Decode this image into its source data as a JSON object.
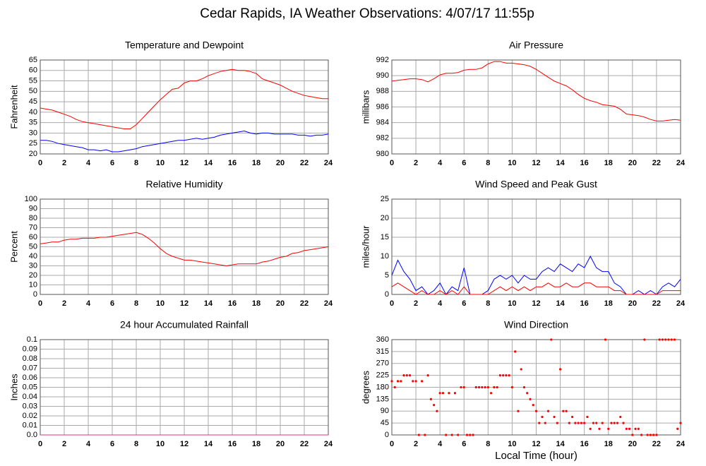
{
  "title": "Cedar Rapids, IA Weather Observations: 4/07/17 11:55p",
  "chart_data": [
    {
      "type": "line",
      "title": "Temperature and Dewpoint",
      "ylabel": "Fahrenheit",
      "x": [
        0,
        0.5,
        1,
        1.5,
        2,
        2.5,
        3,
        3.5,
        4,
        4.5,
        5,
        5.5,
        6,
        6.5,
        7,
        7.5,
        8,
        8.5,
        9,
        9.5,
        10,
        10.5,
        11,
        11.5,
        12,
        12.5,
        13,
        13.5,
        14,
        14.5,
        15,
        15.5,
        16,
        16.5,
        17,
        17.5,
        18,
        18.5,
        19,
        19.5,
        20,
        20.5,
        21,
        21.5,
        22,
        22.5,
        23,
        23.5,
        24
      ],
      "series": [
        {
          "color": "#ff0000",
          "values": [
            42,
            41.5,
            41,
            40,
            39,
            38,
            36.5,
            35.5,
            35,
            34.5,
            34,
            33.5,
            33,
            32.5,
            32,
            32,
            34,
            37,
            40,
            43,
            46,
            48.5,
            51,
            51.5,
            54,
            55,
            55,
            56,
            57.5,
            58.5,
            59.5,
            60,
            60.5,
            60,
            60,
            59.5,
            58.5,
            56,
            55,
            54,
            53,
            51.5,
            50,
            49,
            48,
            47.5,
            47,
            46.5,
            46.5
          ]
        },
        {
          "color": "#0000ff",
          "values": [
            26.5,
            26.5,
            26,
            25,
            24.5,
            24,
            23.5,
            23,
            22,
            22,
            21.5,
            22,
            21,
            21,
            21.5,
            22,
            22.5,
            23.5,
            24,
            24.5,
            25,
            25.5,
            26,
            26.5,
            26.5,
            27,
            27.5,
            27,
            27.5,
            28,
            29,
            29.5,
            30,
            30.5,
            31,
            30,
            29.5,
            30,
            30,
            29.5,
            29.5,
            29.5,
            29.5,
            29,
            29,
            28.5,
            29,
            29,
            29.5
          ]
        }
      ],
      "xlim": [
        0,
        24
      ],
      "xticks": [
        0,
        2,
        4,
        6,
        8,
        10,
        12,
        14,
        16,
        18,
        20,
        22,
        24
      ],
      "ylim": [
        20,
        65
      ],
      "yticks": [
        20,
        25,
        30,
        35,
        40,
        45,
        50,
        55,
        60,
        65
      ],
      "grid": true
    },
    {
      "type": "line",
      "title": "Air Pressure",
      "ylabel": "millibars",
      "x": [
        0,
        0.5,
        1,
        1.5,
        2,
        2.5,
        3,
        3.5,
        4,
        4.5,
        5,
        5.5,
        6,
        6.5,
        7,
        7.5,
        8,
        8.5,
        9,
        9.5,
        10,
        10.5,
        11,
        11.5,
        12,
        12.5,
        13,
        13.5,
        14,
        14.5,
        15,
        15.5,
        16,
        16.5,
        17,
        17.5,
        18,
        18.5,
        19,
        19.5,
        20,
        20.5,
        21,
        21.5,
        22,
        22.5,
        23,
        23.5,
        24
      ],
      "series": [
        {
          "color": "#ff0000",
          "values": [
            989.3,
            989.4,
            989.5,
            989.6,
            989.6,
            989.5,
            989.2,
            989.6,
            990.1,
            990.3,
            990.3,
            990.4,
            990.7,
            990.8,
            990.8,
            991,
            991.5,
            991.8,
            991.8,
            991.6,
            991.6,
            991.5,
            991.4,
            991.2,
            990.8,
            990.3,
            989.8,
            989.3,
            989,
            988.7,
            988.2,
            987.6,
            987.1,
            986.8,
            986.6,
            986.3,
            986.2,
            986.1,
            985.7,
            985.1,
            985,
            984.9,
            984.7,
            984.4,
            984.2,
            984.2,
            984.3,
            984.4,
            984.3
          ]
        }
      ],
      "xlim": [
        0,
        24
      ],
      "xticks": [
        0,
        2,
        4,
        6,
        8,
        10,
        12,
        14,
        16,
        18,
        20,
        22,
        24
      ],
      "ylim": [
        980,
        992
      ],
      "yticks": [
        980,
        982,
        984,
        986,
        988,
        990,
        992
      ],
      "grid": true
    },
    {
      "type": "line",
      "title": "Relative Humidity",
      "ylabel": "Percent",
      "x": [
        0,
        0.5,
        1,
        1.5,
        2,
        2.5,
        3,
        3.5,
        4,
        4.5,
        5,
        5.5,
        6,
        6.5,
        7,
        7.5,
        8,
        8.5,
        9,
        9.5,
        10,
        10.5,
        11,
        11.5,
        12,
        12.5,
        13,
        13.5,
        14,
        14.5,
        15,
        15.5,
        16,
        16.5,
        17,
        17.5,
        18,
        18.5,
        19,
        19.5,
        20,
        20.5,
        21,
        21.5,
        22,
        22.5,
        23,
        23.5,
        24
      ],
      "series": [
        {
          "color": "#ff0000",
          "values": [
            53,
            54,
            55,
            55,
            57,
            58,
            58,
            59,
            59,
            59,
            60,
            60,
            61,
            62,
            63,
            64,
            65,
            63,
            59,
            54,
            48,
            43,
            40,
            38,
            36,
            36,
            35,
            34,
            33,
            32,
            31,
            30,
            31,
            32,
            32,
            32,
            32,
            34,
            35,
            37,
            39,
            40,
            43,
            44,
            46,
            47,
            48,
            49,
            50
          ]
        }
      ],
      "xlim": [
        0,
        24
      ],
      "xticks": [
        0,
        2,
        4,
        6,
        8,
        10,
        12,
        14,
        16,
        18,
        20,
        22,
        24
      ],
      "ylim": [
        0,
        100
      ],
      "yticks": [
        0,
        10,
        20,
        30,
        40,
        50,
        60,
        70,
        80,
        90,
        100
      ],
      "grid": true
    },
    {
      "type": "line",
      "title": "Wind Speed and Peak Gust",
      "ylabel": "miles/hour",
      "x": [
        0,
        0.5,
        1,
        1.5,
        2,
        2.5,
        3,
        3.5,
        4,
        4.5,
        5,
        5.5,
        6,
        6.5,
        7,
        7.5,
        8,
        8.5,
        9,
        9.5,
        10,
        10.5,
        11,
        11.5,
        12,
        12.5,
        13,
        13.5,
        14,
        14.5,
        15,
        15.5,
        16,
        16.5,
        17,
        17.5,
        18,
        18.5,
        19,
        19.5,
        20,
        20.5,
        21,
        21.5,
        22,
        22.5,
        23,
        23.5,
        24
      ],
      "series": [
        {
          "color": "#0000ff",
          "values": [
            5,
            9,
            6,
            4,
            1,
            2,
            0,
            1,
            3,
            0,
            2,
            1,
            7,
            0,
            0,
            0,
            1,
            4,
            5,
            4,
            5,
            3,
            5,
            4,
            4,
            6,
            7,
            6,
            8,
            7,
            6,
            8,
            7,
            10,
            7,
            6,
            6,
            3,
            2,
            0,
            0,
            1,
            0,
            1,
            0,
            2,
            3,
            2,
            4
          ]
        },
        {
          "color": "#ff0000",
          "values": [
            2,
            3,
            2,
            1,
            0,
            1,
            0,
            0,
            1,
            0,
            1,
            0,
            2,
            0,
            0,
            0,
            0,
            1,
            2,
            1,
            2,
            1,
            2,
            1,
            2,
            2,
            3,
            2,
            2,
            3,
            2,
            2,
            3,
            3,
            2,
            2,
            2,
            1,
            1,
            0,
            0,
            0,
            0,
            0,
            0,
            1,
            1,
            1,
            1
          ]
        }
      ],
      "xlim": [
        0,
        24
      ],
      "xticks": [
        0,
        2,
        4,
        6,
        8,
        10,
        12,
        14,
        16,
        18,
        20,
        22,
        24
      ],
      "ylim": [
        0,
        25
      ],
      "yticks": [
        0,
        5,
        10,
        15,
        20,
        25
      ],
      "grid": true
    },
    {
      "type": "line",
      "title": "24 hour Accumulated Rainfall",
      "ylabel": "Inches",
      "x": [
        0,
        24
      ],
      "series": [
        {
          "color": "#e0307a",
          "values": [
            0,
            0
          ]
        }
      ],
      "xlim": [
        0,
        24
      ],
      "xticks": [
        0,
        2,
        4,
        6,
        8,
        10,
        12,
        14,
        16,
        18,
        20,
        22,
        24
      ],
      "ylim": [
        0,
        0.1
      ],
      "yticks": [
        {
          "value": 0,
          "label": "0.0"
        },
        0.01,
        0.02,
        0.03,
        0.04,
        0.05,
        0.06,
        0.07,
        0.08,
        0.09,
        0.1
      ],
      "grid": true
    },
    {
      "type": "scatter",
      "title": "Wind Direction",
      "ylabel": "degrees",
      "xlabel": "Local Time (hour)",
      "color": "#ff0000",
      "x": [
        0,
        0.25,
        0.5,
        0.75,
        1,
        1.25,
        1.5,
        1.75,
        2,
        2.25,
        2.5,
        2.75,
        3,
        3.25,
        3.5,
        3.75,
        4,
        4.25,
        4.5,
        4.75,
        5,
        5.25,
        5.5,
        5.75,
        6,
        6.25,
        6.5,
        6.75,
        7,
        7.25,
        7.5,
        7.75,
        8,
        8.25,
        8.5,
        8.75,
        9,
        9.25,
        9.5,
        9.75,
        10,
        10.25,
        10.5,
        10.75,
        11,
        11.25,
        11.5,
        11.75,
        12,
        12.25,
        12.5,
        12.75,
        13,
        13.25,
        13.5,
        13.75,
        14,
        14.25,
        14.5,
        14.75,
        15,
        15.25,
        15.5,
        15.75,
        16,
        16.25,
        16.5,
        16.75,
        17,
        17.25,
        17.5,
        17.75,
        18,
        18.25,
        18.5,
        18.75,
        19,
        19.25,
        19.5,
        19.75,
        20,
        20.25,
        20.5,
        20.75,
        21,
        21.25,
        21.5,
        21.75,
        22,
        22.25,
        22.5,
        22.75,
        23,
        23.25,
        23.5,
        23.75,
        24
      ],
      "values": [
        203,
        180,
        203,
        203,
        225,
        225,
        225,
        203,
        203,
        0,
        203,
        0,
        225,
        135,
        113,
        90,
        158,
        158,
        0,
        158,
        0,
        158,
        0,
        180,
        180,
        0,
        0,
        0,
        180,
        180,
        180,
        180,
        180,
        158,
        180,
        180,
        225,
        225,
        225,
        225,
        180,
        315,
        90,
        248,
        180,
        158,
        135,
        113,
        90,
        45,
        68,
        45,
        90,
        360,
        68,
        45,
        248,
        90,
        90,
        45,
        68,
        45,
        45,
        45,
        45,
        68,
        23,
        45,
        45,
        23,
        45,
        360,
        23,
        45,
        45,
        45,
        68,
        45,
        23,
        23,
        0,
        23,
        23,
        0,
        360,
        0,
        0,
        0,
        0,
        360,
        360,
        360,
        360,
        360,
        360,
        23,
        45
      ],
      "xlim": [
        0,
        24
      ],
      "xticks": [
        0,
        2,
        4,
        6,
        8,
        10,
        12,
        14,
        16,
        18,
        20,
        22,
        24
      ],
      "ylim": [
        0,
        360
      ],
      "yticks": [
        0,
        45,
        90,
        135,
        180,
        225,
        270,
        315,
        360
      ],
      "grid": true
    }
  ]
}
